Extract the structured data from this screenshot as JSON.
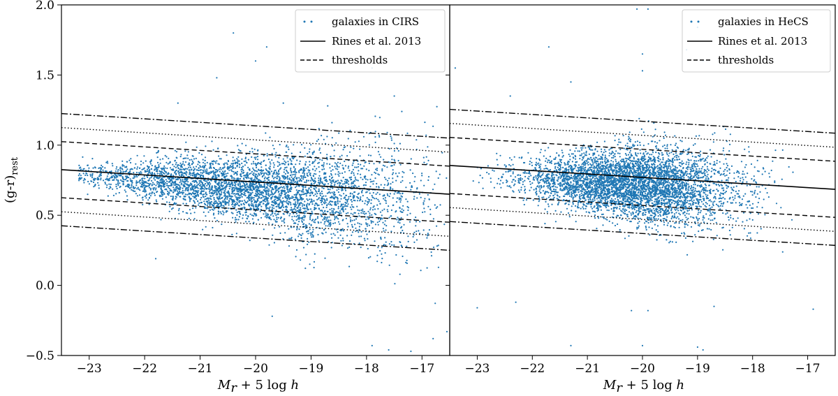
{
  "chart_data": [
    {
      "type": "scatter",
      "panel": "left",
      "x_range": [
        -23.5,
        -16.5
      ],
      "y_range": [
        -0.5,
        2.0
      ],
      "x_ticks": [
        -23,
        -22,
        -21,
        -20,
        -19,
        -18,
        -17
      ],
      "x_tick_labels": [
        "−23",
        "−22",
        "−21",
        "−20",
        "−19",
        "−18",
        "−17"
      ],
      "y_ticks": [
        -0.5,
        0.0,
        0.5,
        1.0,
        1.5,
        2.0
      ],
      "y_tick_labels": [
        "−0.5",
        "0.0",
        "0.5",
        "1.0",
        "1.5",
        "2.0"
      ],
      "ylabel": "(g-r)",
      "ylabel_sub": "rest",
      "xlabel_main": "M",
      "xlabel_sub": "r",
      "xlabel_rest": " + 5 log ",
      "xlabel_h": "h",
      "legend": {
        "position": "top-right",
        "entries": [
          {
            "label": "galaxies in CIRS",
            "style": "dot"
          },
          {
            "label": "Rines et al. 2013",
            "style": "solid"
          },
          {
            "label": "thresholds",
            "style": "dashed"
          }
        ]
      },
      "relation": {
        "label": "Rines et al. 2013",
        "x": [
          -23.5,
          -16.5
        ],
        "y": [
          0.825,
          0.65
        ]
      },
      "thresholds": [
        {
          "style": "dashed",
          "offset": 0.2
        },
        {
          "style": "dotted",
          "offset": 0.3
        },
        {
          "style": "dashdot",
          "offset": 0.4
        }
      ],
      "scatter": {
        "n_points": 4200,
        "x_range": [
          -23.2,
          -16.55
        ],
        "density_center_x": -20.0,
        "density_spread_x": 1.6,
        "center_y_at_x": {
          "x": [
            -23.0,
            -20.0,
            -17.0
          ],
          "y": [
            0.79,
            0.68,
            0.6
          ]
        },
        "spread_y_at_x": {
          "x": [
            -23.0,
            -20.0,
            -17.0
          ],
          "y": [
            0.05,
            0.12,
            0.23
          ]
        },
        "outlier_points": [
          [
            -20.4,
            1.8
          ],
          [
            -20.0,
            1.6
          ],
          [
            -19.8,
            1.7
          ],
          [
            -20.7,
            1.48
          ],
          [
            -17.9,
            1.55
          ],
          [
            -17.5,
            1.35
          ],
          [
            -17.6,
            -0.46
          ],
          [
            -17.2,
            -0.47
          ],
          [
            -17.9,
            -0.43
          ],
          [
            -16.8,
            -0.38
          ],
          [
            -16.55,
            -0.33
          ],
          [
            -21.8,
            0.19
          ],
          [
            -19.7,
            -0.22
          ],
          [
            -18.3,
            0.95
          ],
          [
            -19.5,
            1.3
          ],
          [
            -21.4,
            1.3
          ],
          [
            -18.7,
            1.28
          ]
        ],
        "color": "#1f77b4"
      }
    },
    {
      "type": "scatter",
      "panel": "right",
      "x_range": [
        -23.5,
        -16.5
      ],
      "y_range": [
        -0.5,
        2.0
      ],
      "x_ticks": [
        -23,
        -22,
        -21,
        -20,
        -19,
        -18,
        -17
      ],
      "x_tick_labels": [
        "−23",
        "−22",
        "−21",
        "−20",
        "−19",
        "−18",
        "−17"
      ],
      "xlabel_main": "M",
      "xlabel_sub": "r",
      "xlabel_rest": " + 5 log ",
      "xlabel_h": "h",
      "legend": {
        "position": "top-right",
        "entries": [
          {
            "label": "galaxies in HeCS",
            "style": "dot"
          },
          {
            "label": "Rines et al. 2013",
            "style": "solid"
          },
          {
            "label": "thresholds",
            "style": "dashed"
          }
        ]
      },
      "relation": {
        "label": "Rines et al. 2013",
        "x": [
          -23.5,
          -16.5
        ],
        "y": [
          0.855,
          0.685
        ]
      },
      "thresholds": [
        {
          "style": "dashed",
          "offset": 0.2
        },
        {
          "style": "dotted",
          "offset": 0.3
        },
        {
          "style": "dashdot",
          "offset": 0.4
        }
      ],
      "scatter": {
        "n_points": 4800,
        "x_range": [
          -23.3,
          -17.2
        ],
        "density_center_x": -20.2,
        "density_spread_x": 0.95,
        "center_y_at_x": {
          "x": [
            -23.0,
            -20.0,
            -17.0
          ],
          "y": [
            0.79,
            0.72,
            0.64
          ]
        },
        "spread_y_at_x": {
          "x": [
            -23.0,
            -20.0,
            -17.0
          ],
          "y": [
            0.06,
            0.13,
            0.18
          ]
        },
        "outlier_points": [
          [
            -23.4,
            1.55
          ],
          [
            -22.4,
            1.35
          ],
          [
            -21.7,
            1.7
          ],
          [
            -21.3,
            1.45
          ],
          [
            -20.1,
            1.97
          ],
          [
            -19.9,
            1.97
          ],
          [
            -20.0,
            1.65
          ],
          [
            -20.0,
            1.53
          ],
          [
            -19.2,
            1.68
          ],
          [
            -19.0,
            1.84
          ],
          [
            -18.9,
            1.6
          ],
          [
            -21.3,
            -0.43
          ],
          [
            -20.0,
            -0.43
          ],
          [
            -19.0,
            -0.44
          ],
          [
            -18.9,
            -0.46
          ],
          [
            -20.2,
            -0.18
          ],
          [
            -19.9,
            -0.18
          ],
          [
            -18.7,
            -0.15
          ],
          [
            -16.9,
            -0.17
          ],
          [
            -22.3,
            -0.12
          ],
          [
            -23.0,
            -0.16
          ]
        ],
        "color": "#1f77b4"
      }
    }
  ]
}
